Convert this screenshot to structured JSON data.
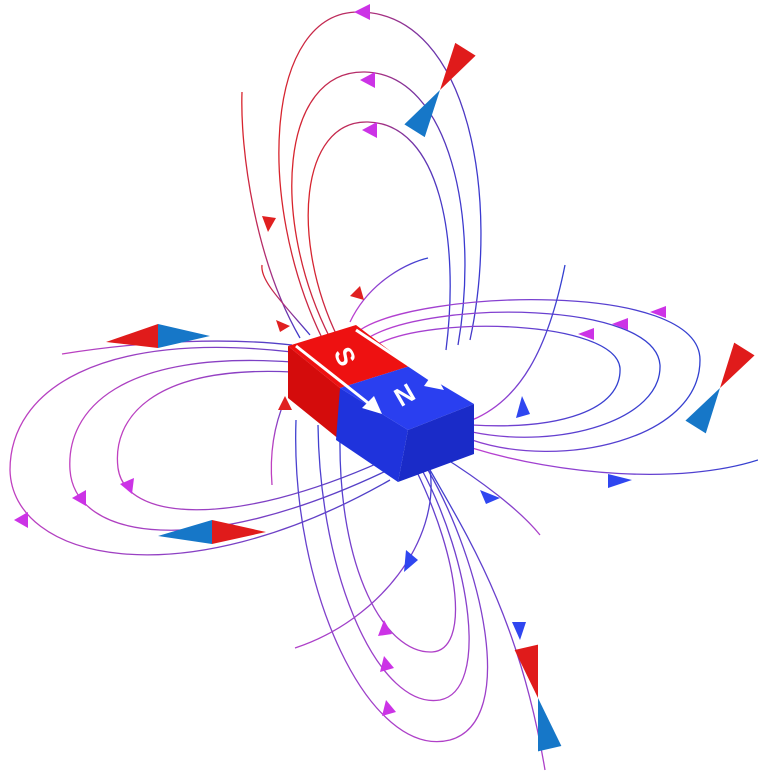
{
  "magnet": {
    "south_label": "S",
    "north_label": "N",
    "south_color": "#ee1111",
    "north_color": "#2a3ff0"
  },
  "colors": {
    "south_line": "#e02020",
    "mid_line": "#9b2cc8",
    "north_line": "#2a35d8",
    "arrow_magenta": "#cc33e6",
    "arrow_blue": "#2f46f0",
    "compass_red": "#e01b1b",
    "compass_blue": "#1677c8"
  },
  "icons": [
    "field-line-arrow",
    "compass-needle",
    "magnetization-arrow"
  ]
}
